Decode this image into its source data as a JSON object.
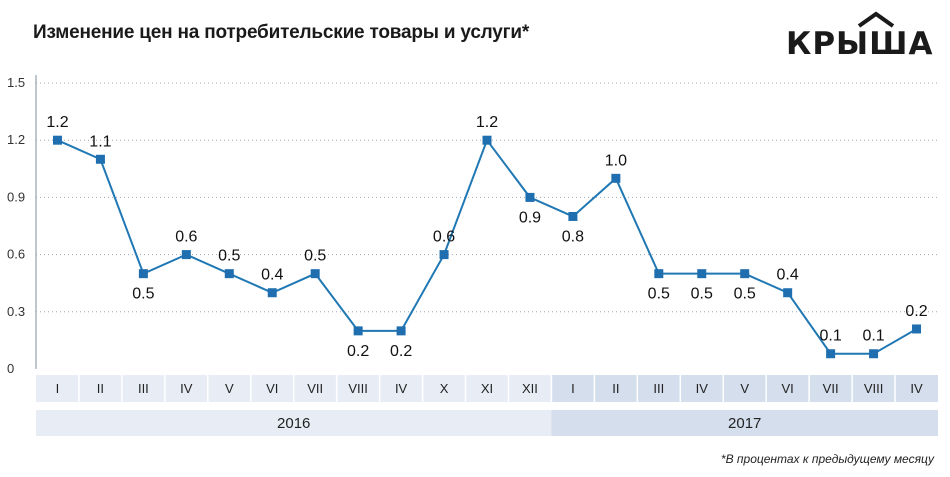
{
  "title": "Изменение цен на потребительские товары и услуги*",
  "logo_text": "КРЫША",
  "footnote": "*В процентах к предыдущему месяцу",
  "colors": {
    "line": "#1f78b4",
    "marker": "#1f6fb0",
    "band_2016": "#e8edf5",
    "band_2017": "#d5deec",
    "grid": "#9aa7b6"
  },
  "chart_data": {
    "type": "line",
    "title": "Изменение цен на потребительские товары и услуги*",
    "xlabel": "",
    "ylabel": "",
    "ylim": [
      0,
      1.5
    ],
    "yticks": [
      "0",
      "0.3",
      "0.6",
      "0.9",
      "1.2",
      "1.5"
    ],
    "categories": [
      "I",
      "II",
      "III",
      "IV",
      "V",
      "VI",
      "VII",
      "VIII",
      "IV",
      "X",
      "XI",
      "XII",
      "I",
      "II",
      "III",
      "IV",
      "V",
      "VI",
      "VII",
      "VIII",
      "IV"
    ],
    "series": [
      {
        "values": [
          1.2,
          1.1,
          0.5,
          0.6,
          0.5,
          0.4,
          0.5,
          0.2,
          0.2,
          0.6,
          1.2,
          0.9,
          0.8,
          1.0,
          0.5,
          0.5,
          0.5,
          0.4,
          0.08,
          0.08,
          0.21
        ],
        "labels": [
          "1.2",
          "1.1",
          "0.5",
          "0.6",
          "0.5",
          "0.4",
          "0.5",
          "0.2",
          "0.2",
          "0.6",
          "1.2",
          "0.9",
          "0.8",
          "1.0",
          "0.5",
          "0.5",
          "0.5",
          "0.4",
          "0.1",
          "0.1",
          "0.2"
        ],
        "label_pos": [
          "above",
          "above",
          "below",
          "above",
          "above",
          "above",
          "above",
          "below",
          "below",
          "above",
          "above",
          "below",
          "below",
          "above",
          "below",
          "below",
          "below",
          "above",
          "above",
          "above",
          "above"
        ]
      }
    ],
    "years": [
      {
        "label": "2016",
        "count": 12
      },
      {
        "label": "2017",
        "count": 9
      }
    ],
    "grid": true,
    "legend": "none"
  }
}
